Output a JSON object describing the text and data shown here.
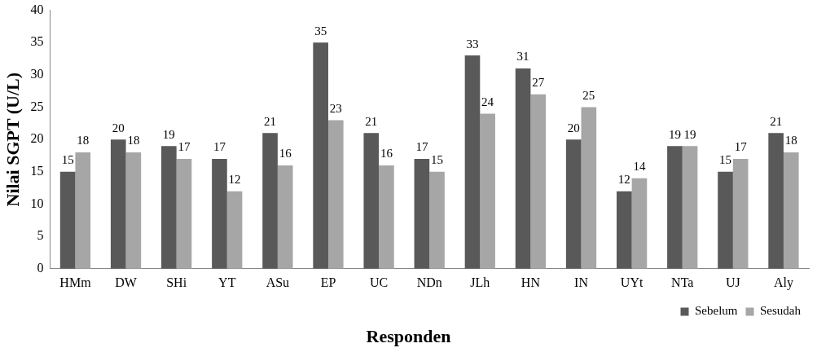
{
  "chart_data": {
    "type": "bar",
    "xlabel": "Responden",
    "ylabel": "Nilai SGPT (U/L)",
    "categories": [
      "HMm",
      "DW",
      "SHi",
      "YT",
      "ASu",
      "EP",
      "UC",
      "NDn",
      "JLh",
      "HN",
      "IN",
      "UYt",
      "NTa",
      "UJ",
      "Aly"
    ],
    "series": [
      {
        "name": "Sebelum",
        "color": "#595959",
        "values": [
          15,
          20,
          19,
          17,
          21,
          35,
          21,
          17,
          33,
          31,
          20,
          12,
          19,
          15,
          21
        ]
      },
      {
        "name": "Sesudah",
        "color": "#a6a6a6",
        "values": [
          18,
          18,
          17,
          12,
          16,
          23,
          16,
          15,
          24,
          27,
          25,
          14,
          19,
          17,
          18
        ]
      }
    ],
    "ylim": [
      0,
      40
    ],
    "yticks": [
      0,
      5,
      10,
      15,
      20,
      25,
      30,
      35,
      40
    ],
    "grid": false,
    "legend": "bottom right",
    "data_labels": true
  }
}
